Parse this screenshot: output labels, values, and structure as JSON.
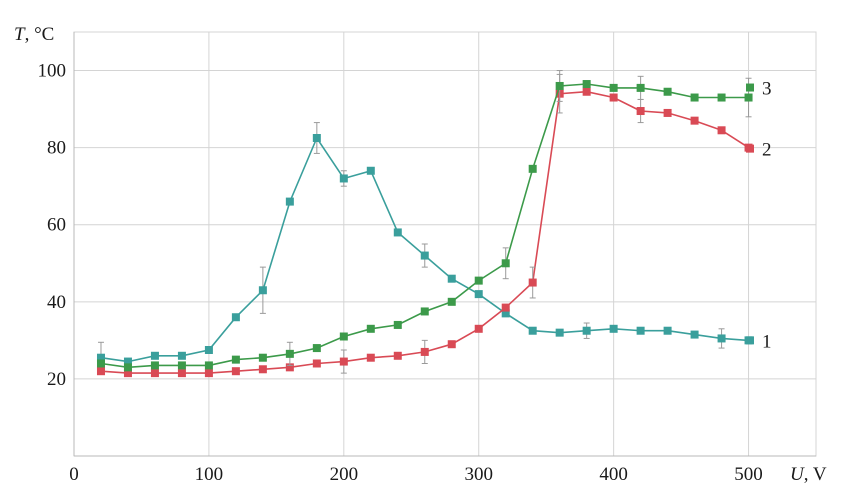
{
  "chart_data": {
    "type": "line",
    "ylabel": {
      "var": "T",
      "unit": ", °C"
    },
    "xlabel": {
      "var": "U",
      "unit": ", V"
    },
    "xlim": [
      0,
      550
    ],
    "ylim": [
      0,
      110
    ],
    "xticks": [
      0,
      100,
      200,
      300,
      400,
      500
    ],
    "yticks": [
      20,
      40,
      60,
      80,
      100
    ],
    "xtick_labels": [
      "0",
      "100",
      "200",
      "300",
      "400",
      "500"
    ],
    "ytick_labels": [
      "20",
      "40",
      "60",
      "80",
      "100"
    ],
    "grid": true,
    "series": [
      {
        "name": "1",
        "color": "#3a9f9c",
        "x": [
          20,
          40,
          60,
          80,
          100,
          120,
          140,
          160,
          180,
          200,
          220,
          240,
          260,
          280,
          300,
          320,
          340,
          360,
          380,
          400,
          420,
          440,
          460,
          480,
          500
        ],
        "y": [
          25.5,
          24.5,
          26,
          26,
          27.5,
          36,
          43,
          66,
          82.5,
          72,
          74,
          58,
          52,
          46,
          42,
          37,
          32.5,
          32,
          32.5,
          33,
          32.5,
          32.5,
          31.5,
          30.5,
          30
        ],
        "err": [
          4,
          1,
          1,
          1,
          1,
          1,
          6,
          1,
          4,
          2,
          1,
          1,
          3,
          1,
          1,
          1,
          1,
          1,
          2,
          1,
          1,
          1,
          1,
          2.5,
          1
        ]
      },
      {
        "name": "2",
        "color": "#d94a55",
        "x": [
          20,
          40,
          60,
          80,
          100,
          120,
          140,
          160,
          180,
          200,
          220,
          240,
          260,
          280,
          300,
          320,
          340,
          360,
          380,
          400,
          420,
          440,
          460,
          480,
          500
        ],
        "y": [
          22,
          21.5,
          21.5,
          21.5,
          21.5,
          22,
          22.5,
          23,
          24,
          24.5,
          25.5,
          26,
          27,
          29,
          33,
          38.5,
          45,
          94,
          94.5,
          93,
          89.5,
          89,
          87,
          84.5,
          80
        ],
        "err": [
          1,
          1,
          1,
          1,
          1,
          1,
          1,
          1,
          1,
          3,
          1,
          1,
          3,
          1,
          1,
          1,
          4,
          5,
          1,
          1,
          3,
          1,
          1,
          1,
          1
        ]
      },
      {
        "name": "3",
        "color": "#3c9a4a",
        "x": [
          20,
          40,
          60,
          80,
          100,
          120,
          140,
          160,
          180,
          200,
          220,
          240,
          260,
          280,
          300,
          320,
          340,
          360,
          380,
          400,
          420,
          440,
          460,
          480,
          500
        ],
        "y": [
          24,
          23,
          23.5,
          23.5,
          23.5,
          25,
          25.5,
          26.5,
          28,
          31,
          33,
          34,
          37.5,
          40,
          45.5,
          50,
          74.5,
          96,
          96.5,
          95.5,
          95.5,
          94.5,
          93,
          93,
          93
        ],
        "err": [
          1,
          1,
          1,
          1,
          1,
          1,
          1,
          3,
          1,
          1,
          1,
          1,
          1,
          1,
          1,
          4,
          1,
          4,
          1,
          1,
          3,
          1,
          1,
          1,
          5
        ]
      }
    ],
    "legend": [
      {
        "label": "3",
        "color": "#3c9a4a",
        "value_y": 93
      },
      {
        "label": "2",
        "color": "#d94a55",
        "value_y": 80
      },
      {
        "label": "1",
        "color": "#3a9f9c",
        "value_y": 30
      }
    ]
  }
}
